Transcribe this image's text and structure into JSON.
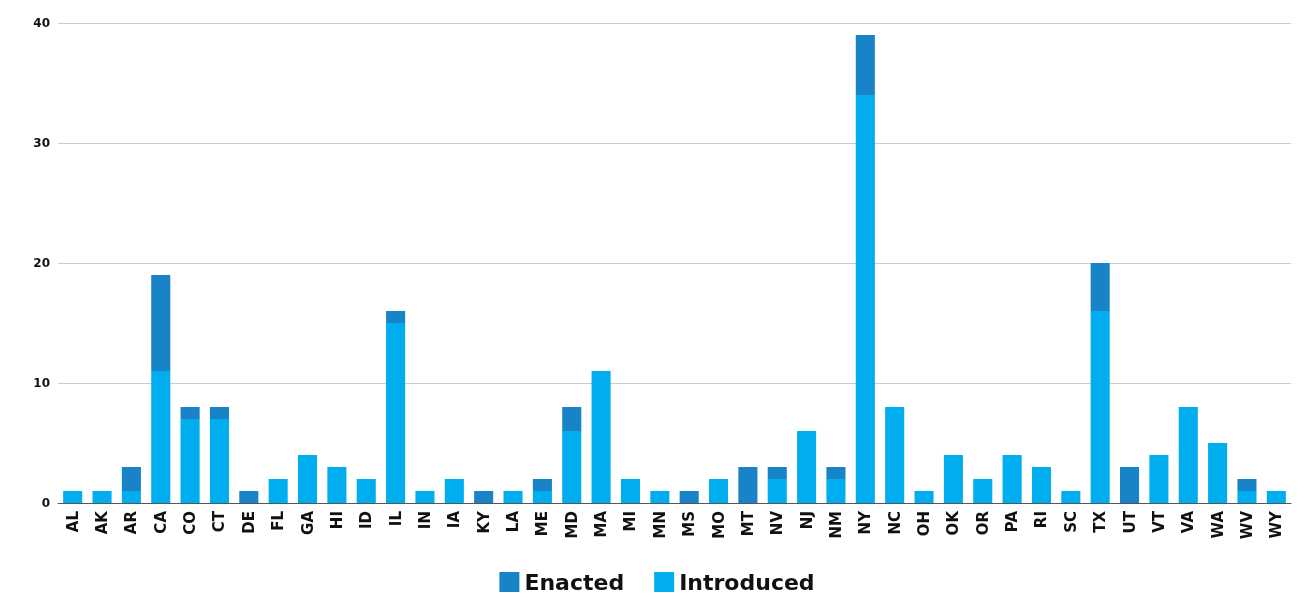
{
  "chart_data": {
    "type": "bar",
    "stacked": true,
    "categories": [
      "AL",
      "AK",
      "AR",
      "CA",
      "CO",
      "CT",
      "DE",
      "FL",
      "GA",
      "HI",
      "ID",
      "IL",
      "IN",
      "IA",
      "KY",
      "LA",
      "ME",
      "MD",
      "MA",
      "MI",
      "MN",
      "MS",
      "MO",
      "MT",
      "NV",
      "NJ",
      "NM",
      "NY",
      "NC",
      "OH",
      "OK",
      "OR",
      "PA",
      "RI",
      "SC",
      "TX",
      "UT",
      "VT",
      "VA",
      "WA",
      "WV",
      "WY"
    ],
    "series": [
      {
        "name": "Introduced",
        "color": "#00aeef",
        "values": [
          1,
          1,
          1,
          11,
          7,
          7,
          0,
          2,
          4,
          3,
          2,
          15,
          1,
          2,
          0,
          1,
          1,
          6,
          11,
          2,
          1,
          0,
          2,
          0,
          2,
          6,
          2,
          34,
          8,
          1,
          4,
          2,
          4,
          3,
          1,
          16,
          0,
          4,
          8,
          5,
          1,
          1
        ]
      },
      {
        "name": "Enacted",
        "color": "#1883c6",
        "values": [
          0,
          0,
          2,
          8,
          1,
          1,
          1,
          0,
          0,
          0,
          0,
          1,
          0,
          0,
          1,
          0,
          1,
          2,
          0,
          0,
          0,
          1,
          0,
          3,
          1,
          0,
          1,
          5,
          0,
          0,
          0,
          0,
          0,
          0,
          0,
          4,
          3,
          0,
          0,
          0,
          1,
          0
        ]
      }
    ],
    "ylim": [
      0,
      40
    ],
    "yticks": [
      0,
      10,
      20,
      30,
      40
    ],
    "grid": "y",
    "legend": "bottom"
  }
}
